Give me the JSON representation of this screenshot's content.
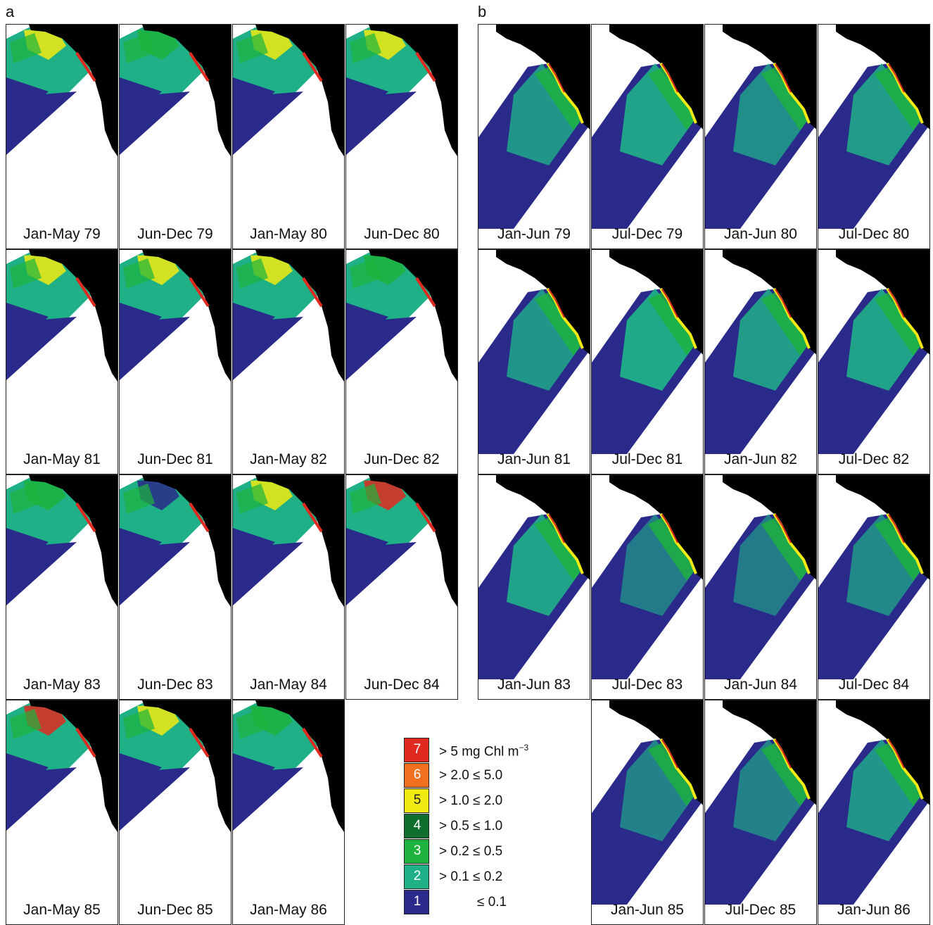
{
  "panel_a": {
    "label": "a",
    "captions": [
      "Jan-May 79",
      "Jun-Dec 79",
      "Jan-May 80",
      "Jun-Dec 80",
      "Jan-May 81",
      "Jun-Dec 81",
      "Jan-May 82",
      "Jun-Dec 82",
      "Jan-May 83",
      "Jun-Dec 83",
      "Jan-May 84",
      "Jun-Dec 84",
      "Jan-May 85",
      "Jun-Dec 85",
      "Jan-May 86"
    ]
  },
  "panel_b": {
    "label": "b",
    "captions": [
      "Jan-Jun 79",
      "Jul-Dec 79",
      "Jan-Jun 80",
      "Jul-Dec 80",
      "Jan-Jun 81",
      "Jul-Dec 81",
      "Jan-Jun 82",
      "Jul-Dec 82",
      "Jan-Jun 83",
      "Jul-Dec 83",
      "Jan-Jun 84",
      "Jul-Dec 84",
      "Jan-Jun 85",
      "Jul-Dec 85",
      "Jan-Jun 86"
    ]
  },
  "legend": {
    "items": [
      {
        "num": "7",
        "text": "> 5 mg Chl m",
        "sup": "−3",
        "color": "#e02a20"
      },
      {
        "num": "6",
        "text": "> 2.0 ≤ 5.0",
        "color": "#f07020"
      },
      {
        "num": "5",
        "text": "> 1.0 ≤ 2.0",
        "color": "#f2ea10"
      },
      {
        "num": "4",
        "text": "> 0.5 ≤ 1.0",
        "color": "#0f6e2e"
      },
      {
        "num": "3",
        "text": "> 0.2 ≤ 0.5",
        "color": "#1db33c"
      },
      {
        "num": "2",
        "text": "> 0.1 ≤ 0.2",
        "color": "#1fb088"
      },
      {
        "num": "1",
        "text": "≤ 0.1",
        "color": "#2a2a8a"
      }
    ]
  },
  "colors": {
    "land": "#000000",
    "low": "#2a2a8a",
    "mid": "#1fb088",
    "green": "#1db33c",
    "yellow": "#f2ea10",
    "red": "#e02a20"
  }
}
